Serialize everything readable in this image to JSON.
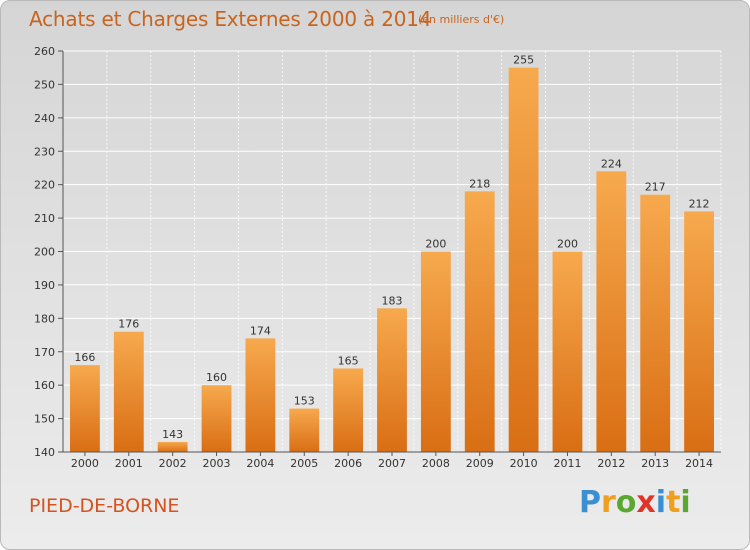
{
  "header": {
    "title": "Achats et Charges Externes 2000 à 2014",
    "units": "(en milliers d'€)"
  },
  "footer": {
    "commune": "PIED-DE-BORNE",
    "logo_letters": [
      "P",
      "r",
      "o",
      "x",
      "i",
      "t",
      "i"
    ],
    "logo_colors": [
      "#3a8fd0",
      "#f0a020",
      "#5aa830",
      "#e0342a",
      "#3a8fd0",
      "#f0a020",
      "#5aa830"
    ]
  },
  "colors": {
    "bar_light": "#f7a94e",
    "bar_dark": "#d96e14",
    "title": "#c8641e",
    "commune": "#d6521e"
  },
  "chart_data": {
    "type": "bar",
    "categories": [
      "2000",
      "2001",
      "2002",
      "2003",
      "2004",
      "2005",
      "2006",
      "2007",
      "2008",
      "2009",
      "2010",
      "2011",
      "2012",
      "2013",
      "2014"
    ],
    "values": [
      166,
      176,
      143,
      160,
      174,
      153,
      165,
      183,
      200,
      218,
      255,
      200,
      224,
      217,
      212
    ],
    "ylim": [
      140,
      260
    ],
    "yticks": [
      140,
      150,
      160,
      170,
      180,
      190,
      200,
      210,
      220,
      230,
      240,
      250,
      260
    ],
    "grid": true,
    "data_labels": true
  }
}
